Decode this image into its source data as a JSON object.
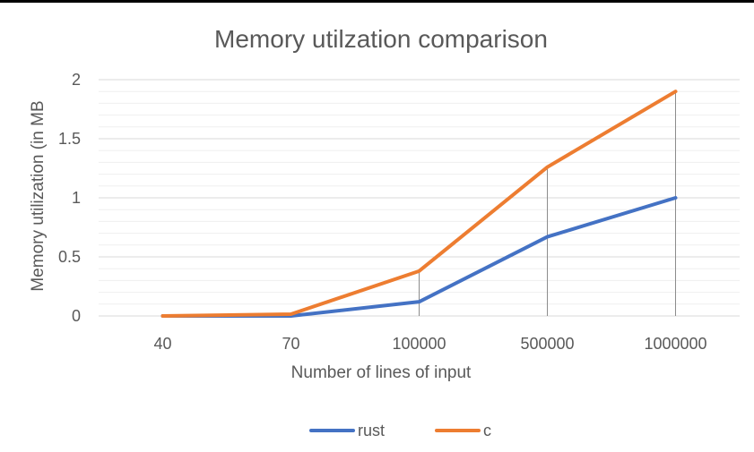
{
  "chart_data": {
    "type": "line",
    "title": "Memory utilzation comparison",
    "xlabel": "Number of lines of input",
    "ylabel": "Memory utilization (in MB",
    "categories": [
      "40",
      "70",
      "100000",
      "500000",
      "1000000"
    ],
    "ylim": [
      0,
      2
    ],
    "yticks": [
      "0",
      "0.5",
      "1",
      "1.5",
      "2"
    ],
    "grid": true,
    "legend_position": "bottom",
    "series": [
      {
        "name": "rust",
        "color": "#4472C4",
        "values": [
          0.0,
          0.0,
          0.12,
          0.67,
          1.0
        ]
      },
      {
        "name": "c",
        "color": "#ED7D31",
        "values": [
          0.0,
          0.015,
          0.38,
          1.26,
          1.9
        ]
      }
    ]
  }
}
